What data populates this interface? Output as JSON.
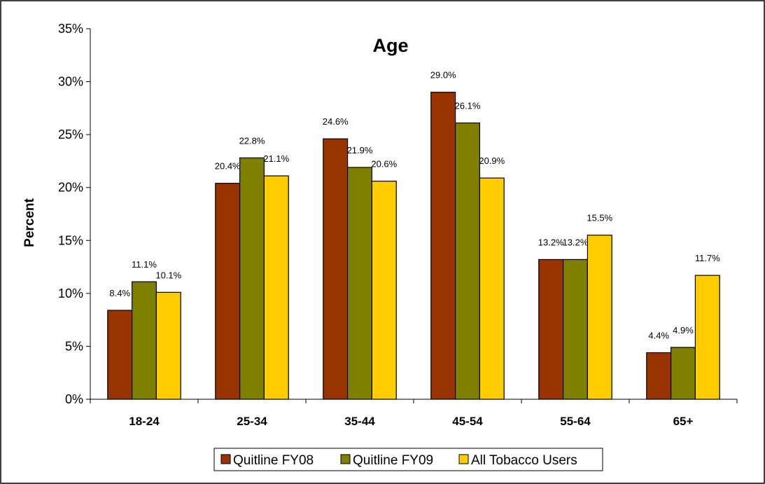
{
  "chart_data": {
    "type": "bar",
    "title": "Age",
    "xlabel": "",
    "ylabel": "Percent",
    "ylim": [
      0,
      35
    ],
    "yticks": [
      "0%",
      "5%",
      "10%",
      "15%",
      "20%",
      "25%",
      "30%",
      "35%"
    ],
    "categories": [
      "18-24",
      "25-34",
      "35-44",
      "45-54",
      "55-64",
      "65+"
    ],
    "series": [
      {
        "name": "Quitline FY08",
        "color": "#993300",
        "values": [
          8.4,
          20.4,
          24.6,
          29.0,
          13.2,
          4.4
        ],
        "labels": [
          "8.4%",
          "20.4%",
          "24.6%",
          "29.0%",
          "13.2%",
          "4.4%"
        ]
      },
      {
        "name": "Quitline FY09",
        "color": "#808000",
        "values": [
          11.1,
          22.8,
          21.9,
          26.1,
          13.2,
          4.9
        ],
        "labels": [
          "11.1%",
          "22.8%",
          "21.9%",
          "26.1%",
          "13.2%",
          "4.9%"
        ]
      },
      {
        "name": "All Tobacco Users",
        "color": "#FFCC00",
        "values": [
          10.1,
          21.1,
          20.6,
          20.9,
          15.5,
          11.7
        ],
        "labels": [
          "10.1%",
          "21.1%",
          "20.6%",
          "20.9%",
          "15.5%",
          "11.7%"
        ]
      }
    ],
    "grid": false,
    "legend": "bottom"
  }
}
